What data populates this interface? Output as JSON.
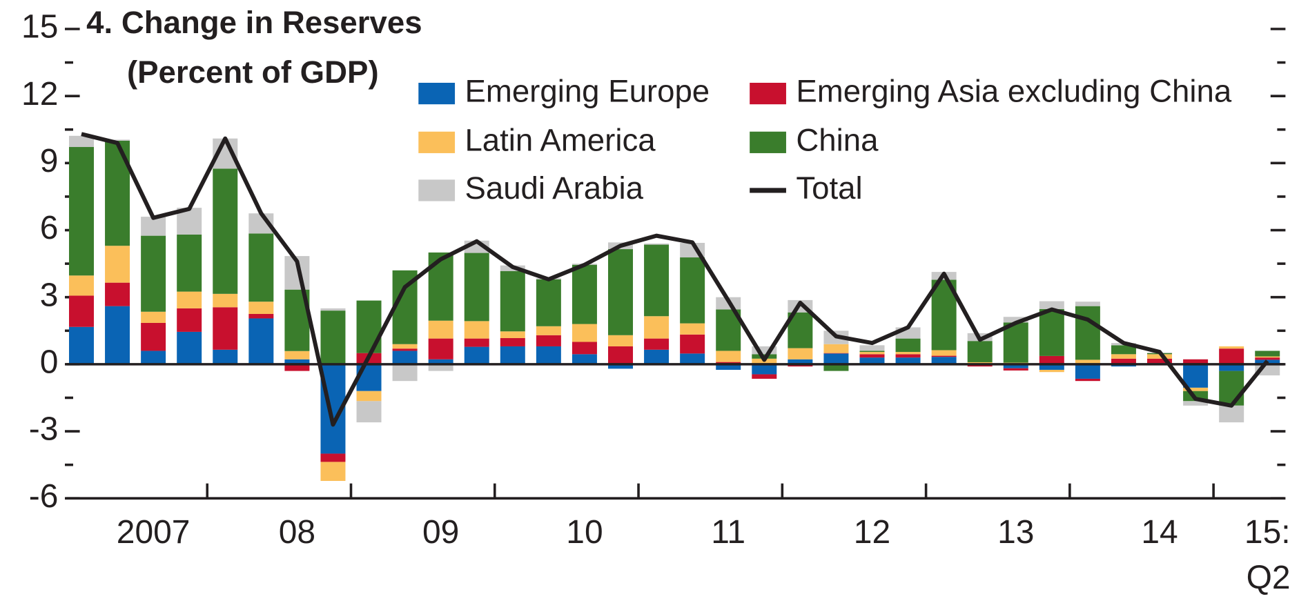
{
  "chart_data": {
    "type": "bar",
    "stacked": true,
    "title": "4. Change in Reserves",
    "subtitle": "(Percent of GDP)",
    "categories": [
      "",
      "",
      "2007",
      "",
      "",
      "",
      "08",
      "",
      "",
      "",
      "09",
      "",
      "",
      "",
      "10",
      "",
      "",
      "",
      "11",
      "",
      "",
      "",
      "12",
      "",
      "",
      "",
      "13",
      "",
      "",
      "",
      "14",
      "",
      "",
      "15: Q2"
    ],
    "series": [
      {
        "name": "Emerging Europe",
        "color": "#0a64b4",
        "values": [
          1.67,
          2.6,
          0.6,
          1.45,
          0.65,
          2.05,
          0.22,
          -4.0,
          -1.2,
          0.6,
          0.22,
          0.78,
          0.8,
          0.8,
          0.45,
          -0.2,
          0.65,
          0.48,
          -0.25,
          -0.45,
          0.22,
          0.48,
          0.3,
          0.3,
          0.33,
          0.02,
          -0.18,
          -0.25,
          -0.65,
          -0.1,
          0.05,
          -1.05,
          -0.3,
          0.2
        ]
      },
      {
        "name": "Emerging Asia excluding China",
        "color": "#c8102e",
        "values": [
          1.4,
          1.05,
          1.25,
          1.05,
          1.9,
          0.2,
          -0.3,
          -0.37,
          0.5,
          0.1,
          0.93,
          0.37,
          0.37,
          0.5,
          0.55,
          0.8,
          0.5,
          0.85,
          0.1,
          -0.2,
          -0.1,
          0.02,
          0.15,
          0.15,
          0.05,
          -0.1,
          -0.1,
          0.37,
          -0.1,
          0.25,
          0.2,
          0.22,
          0.7,
          0.1
        ]
      },
      {
        "name": "Latin America",
        "color": "#fbbf5a",
        "values": [
          0.9,
          1.65,
          0.5,
          0.75,
          0.6,
          0.55,
          0.37,
          -0.85,
          -0.45,
          0.2,
          0.8,
          0.78,
          0.3,
          0.4,
          0.8,
          0.5,
          1.0,
          0.5,
          0.5,
          0.25,
          0.5,
          0.4,
          0.1,
          0.1,
          0.25,
          0.07,
          0.07,
          -0.1,
          0.2,
          0.2,
          0.2,
          -0.15,
          0.1,
          0.05
        ]
      },
      {
        "name": "China",
        "color": "#3a7d2c",
        "values": [
          5.75,
          4.7,
          3.4,
          2.55,
          5.6,
          3.05,
          2.75,
          2.4,
          2.35,
          3.3,
          3.05,
          3.05,
          2.7,
          2.1,
          2.65,
          3.85,
          3.2,
          2.95,
          1.85,
          0.2,
          1.6,
          -0.3,
          0.05,
          0.6,
          3.15,
          0.95,
          1.8,
          2.1,
          2.4,
          0.4,
          0.05,
          -0.45,
          -1.55,
          0.25
        ]
      },
      {
        "name": "Saudi Arabia",
        "color": "#c8c8c8",
        "values": [
          0.5,
          0.05,
          0.85,
          1.2,
          1.35,
          0.9,
          1.5,
          0.1,
          -0.95,
          -0.75,
          -0.3,
          0.55,
          0.25,
          0.05,
          0.05,
          0.3,
          0.05,
          0.65,
          0.55,
          0.35,
          0.55,
          0.6,
          0.25,
          0.5,
          0.35,
          0.35,
          0.25,
          0.35,
          0.2,
          0.1,
          0.02,
          -0.2,
          -0.75,
          -0.5
        ]
      },
      {
        "name": "Total",
        "type": "line",
        "color": "#231f20",
        "values": [
          10.3,
          9.9,
          6.55,
          6.95,
          10.1,
          6.75,
          4.6,
          -2.7,
          0.35,
          3.45,
          4.7,
          5.5,
          4.35,
          3.8,
          4.45,
          5.3,
          5.75,
          5.45,
          2.85,
          0.2,
          2.75,
          1.25,
          0.95,
          1.65,
          4.05,
          1.1,
          1.85,
          2.45,
          2.0,
          0.95,
          0.55,
          -1.55,
          -1.85,
          0.15
        ]
      }
    ],
    "ylim": [
      -6,
      15
    ],
    "yticks": [
      -6,
      -3,
      0,
      3,
      6,
      9,
      12,
      15
    ],
    "yticks_minor": [
      -4.5,
      -1.5,
      1.5,
      4.5,
      7.5,
      10.5,
      13.5
    ],
    "right_ticks": true,
    "grid": false
  }
}
